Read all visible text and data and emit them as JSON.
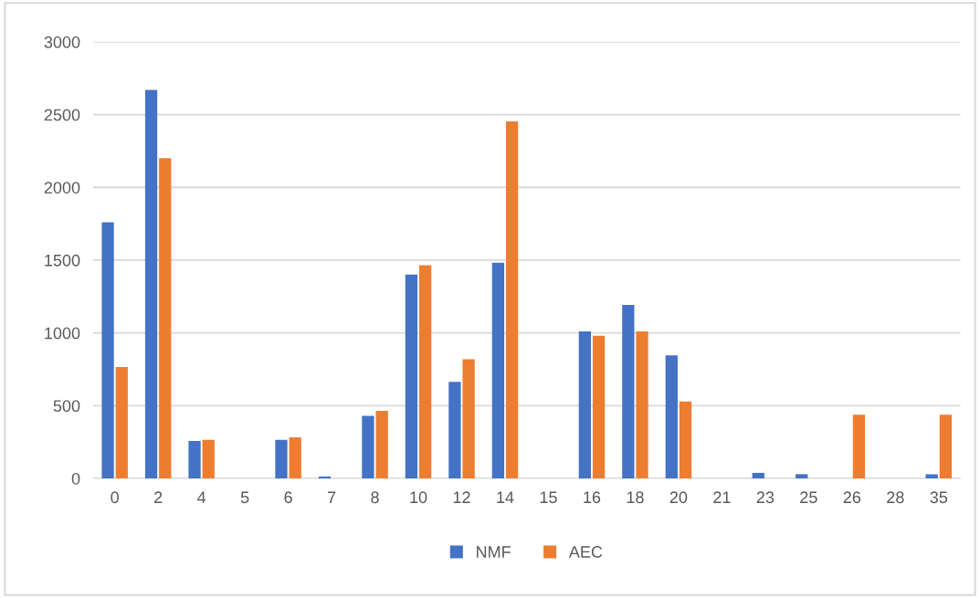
{
  "chart_data": {
    "type": "bar",
    "categories": [
      "0",
      "2",
      "4",
      "5",
      "6",
      "7",
      "8",
      "10",
      "12",
      "14",
      "15",
      "16",
      "18",
      "20",
      "21",
      "23",
      "25",
      "26",
      "28",
      "35"
    ],
    "series": [
      {
        "name": "NMF",
        "color": "#4472c4",
        "values": [
          1760,
          2670,
          257,
          0,
          265,
          13,
          429,
          1400,
          663,
          1482,
          0,
          1010,
          1192,
          846,
          0,
          38,
          29,
          0,
          0,
          29
        ]
      },
      {
        "name": "AEC",
        "color": "#ed7d31",
        "values": [
          765,
          2200,
          265,
          0,
          282,
          0,
          465,
          1465,
          819,
          2453,
          0,
          981,
          1010,
          528,
          0,
          0,
          0,
          438,
          0,
          438
        ]
      }
    ],
    "ylim": [
      0,
      3000
    ],
    "yticks": [
      0,
      500,
      1000,
      1500,
      2000,
      2500,
      3000
    ],
    "grid": "y",
    "legend": "bottom"
  }
}
